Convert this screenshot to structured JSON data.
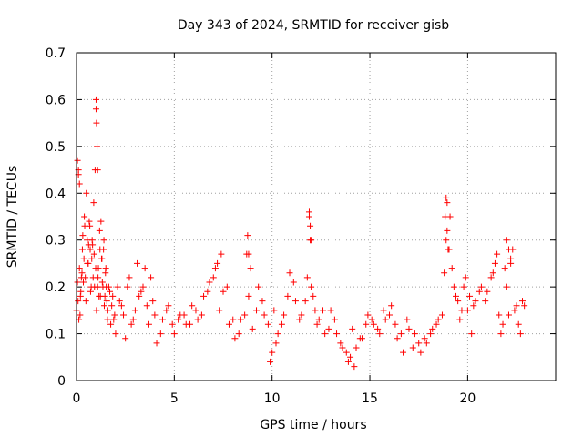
{
  "chart_data": {
    "type": "scatter",
    "title": "Day 343 of 2024, SRMTID for receiver gisb",
    "xlabel": "GPS time / hours",
    "ylabel": "SRMTID / TECUs",
    "xlim": [
      0,
      24.5
    ],
    "ylim": [
      0,
      0.7
    ],
    "xticks": [
      0,
      5,
      10,
      15,
      20
    ],
    "xtick_labels": [
      "0",
      "5",
      "10",
      "15",
      "20"
    ],
    "yticks": [
      0,
      0.1,
      0.2,
      0.3,
      0.4,
      0.5,
      0.6,
      0.7
    ],
    "ytick_labels": [
      "0",
      "0.1",
      "0.2",
      "0.3",
      "0.4",
      "0.5",
      "0.6",
      "0.7"
    ],
    "grid": true,
    "marker": "plus",
    "series": [
      {
        "name": "SRMTID",
        "color": "#ff0000",
        "x": [
          0.0,
          0.05,
          0.1,
          0.15,
          0.2,
          0.25,
          0.3,
          0.35,
          0.4,
          0.45,
          0.5,
          0.55,
          0.6,
          0.65,
          0.7,
          0.75,
          0.8,
          0.85,
          0.9,
          0.95,
          1.0,
          1.05,
          1.1,
          1.15,
          1.2,
          1.25,
          1.3,
          1.35,
          1.4,
          1.45,
          1.5,
          1.55,
          1.6,
          1.7,
          1.8,
          1.9,
          2.0,
          2.2,
          2.4,
          2.6,
          2.8,
          3.0,
          3.2,
          3.4,
          3.6,
          3.8,
          4.0,
          4.3,
          4.6,
          4.9,
          5.2,
          5.5,
          5.8,
          6.1,
          6.4,
          6.7,
          7.0,
          7.2,
          7.4,
          7.7,
          8.0,
          8.3,
          8.6,
          8.9,
          9.2,
          9.5,
          9.8,
          10.0,
          10.2,
          10.5,
          10.8,
          11.1,
          11.4,
          11.7,
          11.9,
          12.1,
          12.3,
          12.6,
          12.9,
          13.2,
          13.5,
          13.8,
          14.0,
          14.2,
          14.5,
          14.8,
          15.1,
          15.4,
          15.7,
          16.0,
          16.3,
          16.6,
          16.9,
          17.2,
          17.5,
          17.8,
          18.1,
          18.4,
          18.7,
          18.9,
          19.1,
          19.3,
          19.5,
          19.7,
          19.9,
          20.1,
          20.3,
          20.6,
          20.9,
          21.2,
          21.4,
          21.6,
          21.8,
          22.0,
          22.2,
          22.4,
          22.6,
          22.8,
          0.08,
          0.12,
          0.18,
          0.22,
          0.28,
          0.32,
          0.38,
          0.42,
          0.48,
          0.55,
          0.62,
          0.68,
          0.72,
          0.78,
          0.82,
          0.88,
          0.92,
          0.98,
          1.02,
          1.08,
          1.12,
          1.18,
          1.22,
          1.28,
          1.32,
          1.38,
          1.42,
          1.48,
          1.52,
          1.58,
          1.65,
          1.75,
          1.85,
          1.95,
          2.1,
          2.3,
          2.5,
          2.7,
          2.9,
          3.1,
          3.3,
          3.5,
          3.7,
          3.9,
          4.1,
          4.4,
          4.7,
          5.0,
          5.3,
          5.6,
          5.9,
          6.2,
          6.5,
          6.8,
          7.1,
          7.3,
          7.5,
          7.8,
          8.1,
          8.4,
          8.7,
          8.8,
          9.0,
          9.3,
          9.6,
          9.9,
          10.1,
          10.3,
          10.6,
          10.9,
          11.2,
          11.5,
          11.8,
          11.95,
          12.0,
          12.2,
          12.4,
          12.7,
          13.0,
          13.3,
          13.6,
          13.9,
          14.1,
          14.3,
          14.6,
          14.9,
          15.2,
          15.5,
          15.8,
          16.1,
          16.4,
          16.7,
          17.0,
          17.3,
          17.6,
          17.9,
          18.2,
          18.5,
          18.8,
          18.95,
          19.05,
          19.2,
          19.4,
          19.6,
          19.8,
          20.0,
          20.2,
          20.4,
          20.7,
          21.0,
          21.3,
          21.5,
          21.7,
          21.9,
          22.1,
          22.3,
          22.5,
          22.7,
          22.9,
          1.0,
          1.02,
          1.05,
          1.08,
          0.05,
          0.1,
          0.15,
          11.9,
          11.95,
          12.0,
          18.85,
          18.9,
          18.95,
          19.0,
          8.75,
          8.8,
          22.0,
          22.1,
          22.2
        ],
        "y": [
          0.15,
          0.21,
          0.45,
          0.24,
          0.18,
          0.22,
          0.28,
          0.21,
          0.35,
          0.22,
          0.4,
          0.3,
          0.25,
          0.34,
          0.28,
          0.2,
          0.3,
          0.22,
          0.27,
          0.45,
          0.58,
          0.2,
          0.22,
          0.18,
          0.28,
          0.34,
          0.26,
          0.2,
          0.3,
          0.18,
          0.24,
          0.17,
          0.15,
          0.19,
          0.16,
          0.13,
          0.1,
          0.17,
          0.14,
          0.2,
          0.12,
          0.15,
          0.18,
          0.2,
          0.16,
          0.22,
          0.14,
          0.1,
          0.15,
          0.12,
          0.13,
          0.14,
          0.12,
          0.15,
          0.14,
          0.19,
          0.22,
          0.25,
          0.27,
          0.2,
          0.13,
          0.1,
          0.14,
          0.24,
          0.15,
          0.17,
          0.12,
          0.06,
          0.08,
          0.12,
          0.18,
          0.21,
          0.13,
          0.17,
          0.35,
          0.18,
          0.12,
          0.15,
          0.11,
          0.13,
          0.08,
          0.06,
          0.05,
          0.03,
          0.09,
          0.12,
          0.13,
          0.11,
          0.15,
          0.14,
          0.12,
          0.1,
          0.13,
          0.07,
          0.08,
          0.09,
          0.1,
          0.12,
          0.14,
          0.3,
          0.35,
          0.2,
          0.17,
          0.15,
          0.22,
          0.18,
          0.16,
          0.19,
          0.17,
          0.22,
          0.25,
          0.14,
          0.12,
          0.2,
          0.25,
          0.15,
          0.12,
          0.17,
          0.17,
          0.13,
          0.14,
          0.19,
          0.23,
          0.31,
          0.26,
          0.33,
          0.17,
          0.25,
          0.29,
          0.33,
          0.19,
          0.26,
          0.29,
          0.38,
          0.2,
          0.24,
          0.15,
          0.2,
          0.24,
          0.32,
          0.18,
          0.26,
          0.21,
          0.28,
          0.16,
          0.23,
          0.2,
          0.13,
          0.2,
          0.12,
          0.18,
          0.14,
          0.2,
          0.16,
          0.09,
          0.22,
          0.13,
          0.25,
          0.19,
          0.24,
          0.12,
          0.17,
          0.08,
          0.13,
          0.16,
          0.1,
          0.14,
          0.12,
          0.16,
          0.13,
          0.18,
          0.21,
          0.24,
          0.15,
          0.19,
          0.12,
          0.09,
          0.13,
          0.27,
          0.18,
          0.11,
          0.2,
          0.14,
          0.04,
          0.15,
          0.1,
          0.14,
          0.23,
          0.17,
          0.14,
          0.22,
          0.3,
          0.2,
          0.15,
          0.13,
          0.1,
          0.15,
          0.1,
          0.07,
          0.04,
          0.11,
          0.07,
          0.09,
          0.14,
          0.12,
          0.1,
          0.13,
          0.16,
          0.09,
          0.06,
          0.11,
          0.1,
          0.06,
          0.08,
          0.11,
          0.13,
          0.23,
          0.38,
          0.28,
          0.24,
          0.18,
          0.13,
          0.2,
          0.15,
          0.1,
          0.17,
          0.2,
          0.19,
          0.23,
          0.27,
          0.1,
          0.24,
          0.14,
          0.28,
          0.16,
          0.1,
          0.16,
          0.6,
          0.55,
          0.5,
          0.45,
          0.47,
          0.44,
          0.42,
          0.36,
          0.33,
          0.3,
          0.35,
          0.39,
          0.32,
          0.28,
          0.31,
          0.27,
          0.3,
          0.28,
          0.26
        ]
      }
    ]
  }
}
